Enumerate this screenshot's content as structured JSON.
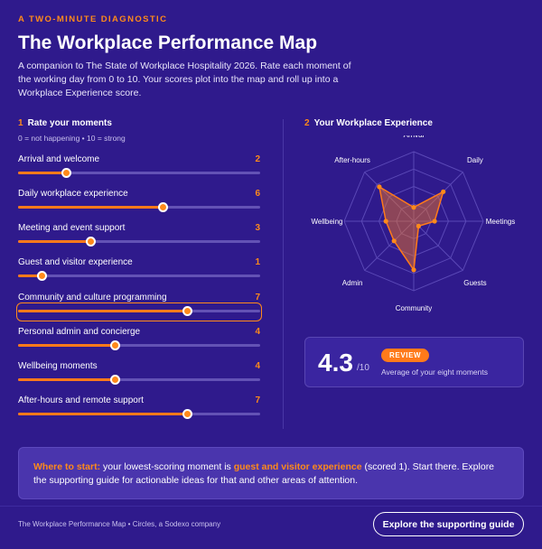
{
  "header": {
    "eyebrow": "A TWO-MINUTE DIAGNOSTIC",
    "title": "The Workplace Performance Map",
    "intro": "A companion to The State of Workplace Hospitality 2026. Rate each moment of the working day from 0 to 10. Your scores plot into the map and roll up into a Workplace Experience score."
  },
  "rate_section": {
    "number": "1",
    "heading": "Rate your moments",
    "scale_note": "0 = not happening  •  10 = strong",
    "max": 10,
    "moments": [
      {
        "label": "Arrival and welcome",
        "value": 2
      },
      {
        "label": "Daily workplace experience",
        "value": 6
      },
      {
        "label": "Meeting and event support",
        "value": 3
      },
      {
        "label": "Guest and visitor experience",
        "value": 1
      },
      {
        "label": "Community and culture programming",
        "value": 7
      },
      {
        "label": "Personal admin and concierge",
        "value": 4
      },
      {
        "label": "Wellbeing moments",
        "value": 4
      },
      {
        "label": "After-hours and remote support",
        "value": 7
      }
    ]
  },
  "experience_section": {
    "number": "2",
    "heading": "Your Workplace Experience"
  },
  "chart_data": {
    "type": "radar",
    "max": 10,
    "axes": [
      "Arrival",
      "Daily",
      "Meetings",
      "Guests",
      "Community",
      "Admin",
      "Wellbeing",
      "After-hours"
    ],
    "values": [
      2,
      6,
      3,
      1,
      7,
      4,
      4,
      7
    ],
    "rings": 4
  },
  "score": {
    "value": "4.3",
    "denominator": "/10",
    "badge": "REVIEW",
    "caption": "Average of your eight moments"
  },
  "callout": {
    "lead": "Where to start:",
    "text1": " your lowest-scoring moment is ",
    "highlight": "guest and visitor experience",
    "text2": " (scored 1). Start there. Explore the supporting guide for actionable ideas for that and other areas of attention."
  },
  "footer": {
    "note": "The Workplace Performance Map • Circles, a Sodexo company",
    "cta": "Explore the supporting guide"
  },
  "colors": {
    "background": "#2f1a8c",
    "accent": "#ff8a1a",
    "track": "#6352b5"
  }
}
